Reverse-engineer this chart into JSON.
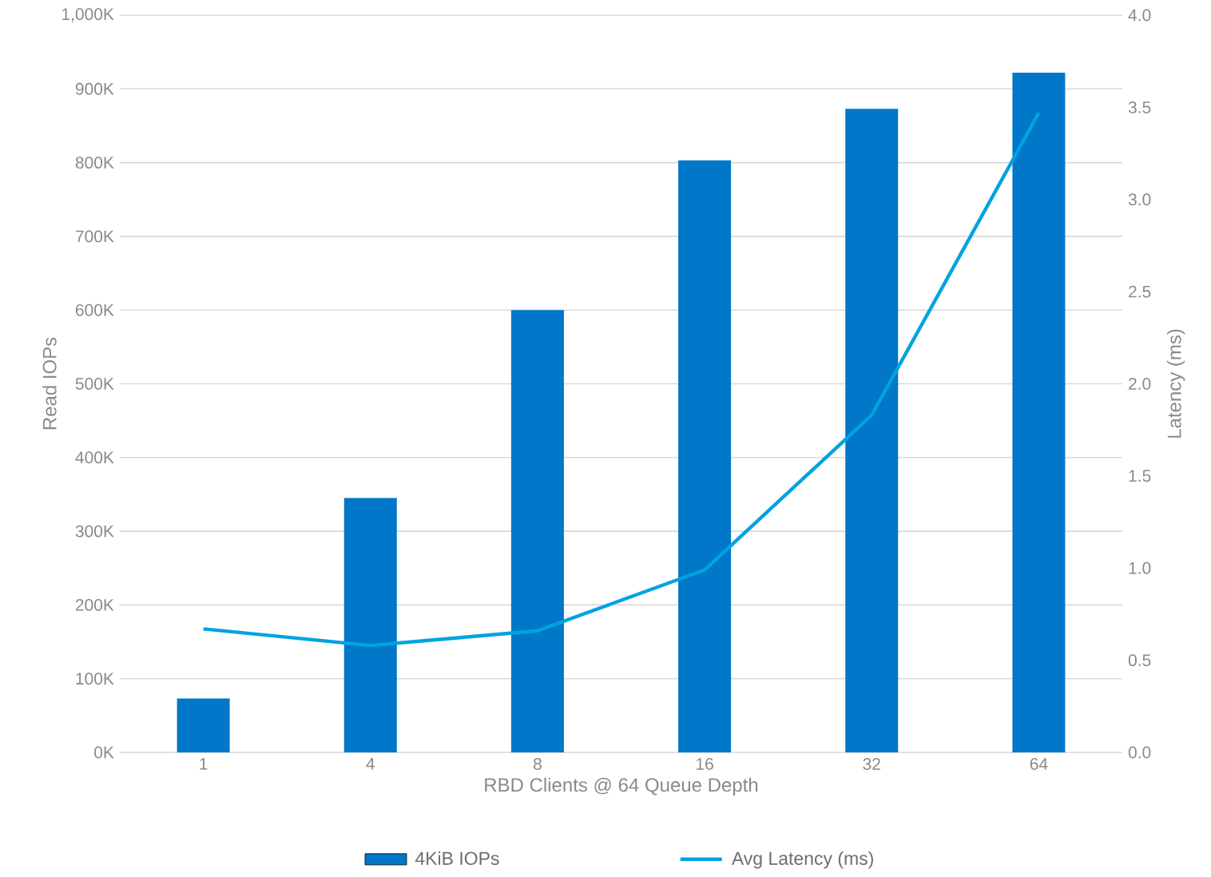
{
  "chart_data": {
    "type": "bar",
    "xlabel": "RBD Clients @ 64 Queue Depth",
    "ylabel": "Read IOPs",
    "y2label": "Latency (ms)",
    "categories": [
      "1",
      "4",
      "8",
      "16",
      "32",
      "64"
    ],
    "series": [
      {
        "name": "4KiB IOPs",
        "color": "#0077c8",
        "values": [
          73000,
          345000,
          600000,
          803000,
          873000,
          922000
        ]
      },
      {
        "name": "Avg Latency (ms)",
        "type": "line",
        "axis": "y2",
        "color": "#00a3e0",
        "values": [
          0.67,
          0.58,
          0.66,
          0.99,
          1.83,
          3.47
        ]
      }
    ],
    "ylim": [
      0,
      1000000
    ],
    "yticks": [
      {
        "value": 0,
        "label": "0K"
      },
      {
        "value": 100000,
        "label": "100K"
      },
      {
        "value": 200000,
        "label": "200K"
      },
      {
        "value": 300000,
        "label": "300K"
      },
      {
        "value": 400000,
        "label": "400K"
      },
      {
        "value": 500000,
        "label": "500K"
      },
      {
        "value": 600000,
        "label": "600K"
      },
      {
        "value": 700000,
        "label": "700K"
      },
      {
        "value": 800000,
        "label": "800K"
      },
      {
        "value": 900000,
        "label": "900K"
      },
      {
        "value": 1000000,
        "label": "1,000K"
      }
    ],
    "y2lim": [
      0,
      4
    ],
    "y2ticks": [
      {
        "value": 0,
        "label": "0.0"
      },
      0.5,
      {
        "value": 1,
        "label": "1.0"
      },
      1.5,
      {
        "value": 2,
        "label": "2.0"
      },
      2.5,
      {
        "value": 3,
        "label": "3.0"
      },
      3.5,
      {
        "value": 4,
        "label": "4.0"
      }
    ],
    "grid": "y",
    "legend": "bottom",
    "marker": "none",
    "line_style": "solid"
  }
}
